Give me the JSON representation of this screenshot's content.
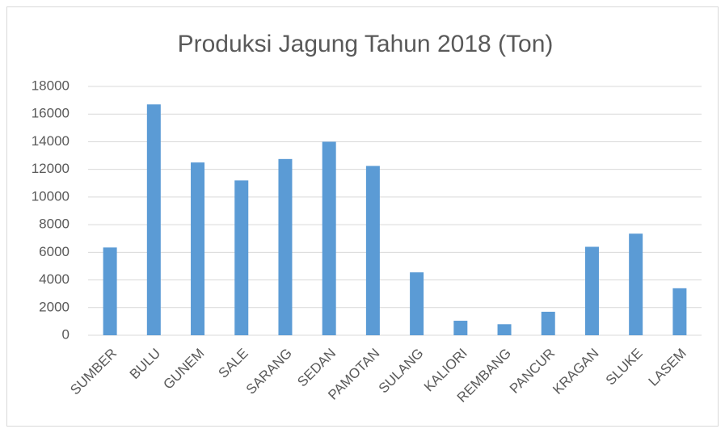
{
  "chart_data": {
    "type": "bar",
    "title": "Produksi Jagung Tahun 2018 (Ton)",
    "categories": [
      "SUMBER",
      "BULU",
      "GUNEM",
      "SALE",
      "SARANG",
      "SEDAN",
      "PAMOTAN",
      "SULANG",
      "KALIORI",
      "REMBANG",
      "PANCUR",
      "KRAGAN",
      "SLUKE",
      "LASEM"
    ],
    "values": [
      6350,
      16700,
      12500,
      11200,
      12750,
      14000,
      12250,
      4550,
      1050,
      800,
      1700,
      6400,
      7350,
      3400
    ],
    "color": "#5b9bd5",
    "ylim": [
      0,
      18000
    ],
    "yticks": [
      0,
      2000,
      4000,
      6000,
      8000,
      10000,
      12000,
      14000,
      16000,
      18000
    ],
    "grid": true
  }
}
